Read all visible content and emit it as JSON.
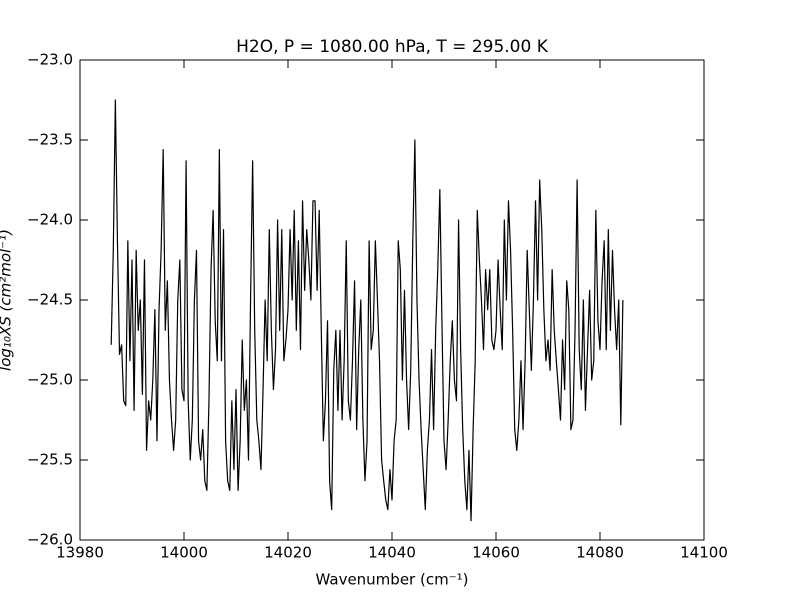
{
  "chart_data": {
    "type": "line",
    "title": "H2O, P = 1080.00 hPa, T = 295.00 K",
    "x_label": "Wavenumber (cm⁻¹)",
    "y_label": "log₁₀XS (cm²mol⁻¹)",
    "xlim": [
      13980,
      14100
    ],
    "xticks": [
      13980,
      14000,
      14020,
      14040,
      14060,
      14080,
      14100
    ],
    "ylim": [
      -26.0,
      -23.0
    ],
    "yticks": [
      {
        "value": -26,
        "label": "−26.0"
      },
      {
        "value": -25.5,
        "label": "−25.5"
      },
      {
        "value": -25,
        "label": "−25.0"
      },
      {
        "value": -24.5,
        "label": "−24.5"
      },
      {
        "value": -24,
        "label": "−24.0"
      },
      {
        "value": -23.5,
        "label": "−23.5"
      },
      {
        "value": -23,
        "label": "−23.0"
      }
    ],
    "grid": false,
    "series": [
      {
        "color": "#000000",
        "x": [
          13986.0,
          13986.4,
          13986.8,
          13987.2,
          13987.6,
          13988.0,
          13988.4,
          13988.8,
          13989.2,
          13989.6,
          13990.0,
          13990.4,
          13990.8,
          13991.2,
          13991.6,
          13992.0,
          13992.4,
          13992.8,
          13993.2,
          13993.6,
          13994.0,
          13994.4,
          13994.8,
          13995.2,
          13995.6,
          13996.0,
          13996.4,
          13996.8,
          13997.2,
          13997.6,
          13998.0,
          13998.4,
          13998.8,
          13999.2,
          13999.6,
          14000.0,
          14000.4,
          14000.8,
          14001.2,
          14001.6,
          14002.0,
          14002.4,
          14002.8,
          14003.2,
          14003.6,
          14004.0,
          14004.4,
          14004.8,
          14005.2,
          14005.6,
          14006.0,
          14006.4,
          14006.8,
          14007.2,
          14007.6,
          14008.0,
          14008.4,
          14008.8,
          14009.2,
          14009.6,
          14010.0,
          14010.4,
          14010.8,
          14011.2,
          14011.6,
          14012.0,
          14012.4,
          14012.8,
          14013.2,
          14013.6,
          14014.0,
          14014.4,
          14014.8,
          14015.2,
          14015.6,
          14016.0,
          14016.4,
          14016.8,
          14017.2,
          14017.6,
          14018.0,
          14018.4,
          14018.8,
          14019.2,
          14019.6,
          14020.0,
          14020.4,
          14020.8,
          14021.2,
          14021.6,
          14022.0,
          14022.4,
          14022.8,
          14023.2,
          14023.6,
          14024.0,
          14024.4,
          14024.8,
          14025.2,
          14025.6,
          14026.0,
          14026.4,
          14026.8,
          14027.2,
          14027.6,
          14028.0,
          14028.4,
          14028.8,
          14029.2,
          14029.6,
          14030.0,
          14030.4,
          14030.8,
          14031.2,
          14031.6,
          14032.0,
          14032.4,
          14032.8,
          14033.2,
          14033.6,
          14034.0,
          14034.4,
          14034.8,
          14035.2,
          14035.6,
          14036.0,
          14036.4,
          14036.8,
          14037.2,
          14037.6,
          14038.0,
          14038.4,
          14038.8,
          14039.2,
          14039.6,
          14040.0,
          14040.4,
          14040.8,
          14041.2,
          14041.6,
          14042.0,
          14042.4,
          14042.8,
          14043.2,
          14043.6,
          14044.0,
          14044.4,
          14044.8,
          14045.2,
          14045.6,
          14046.0,
          14046.4,
          14046.8,
          14047.2,
          14047.6,
          14048.0,
          14048.4,
          14048.8,
          14049.2,
          14049.6,
          14050.0,
          14050.4,
          14050.8,
          14051.2,
          14051.6,
          14052.0,
          14052.4,
          14052.8,
          14053.2,
          14053.6,
          14054.0,
          14054.4,
          14054.8,
          14055.2,
          14055.6,
          14056.0,
          14056.4,
          14056.8,
          14057.2,
          14057.6,
          14058.0,
          14058.4,
          14058.8,
          14059.2,
          14059.6,
          14060.0,
          14060.4,
          14060.8,
          14061.2,
          14061.6,
          14062.0,
          14062.4,
          14062.8,
          14063.2,
          14063.6,
          14064.0,
          14064.4,
          14064.8,
          14065.2,
          14065.6,
          14066.0,
          14066.4,
          14066.8,
          14067.2,
          14067.6,
          14068.0,
          14068.4,
          14068.8,
          14069.2,
          14069.6,
          14070.0,
          14070.4,
          14070.8,
          14071.2,
          14071.6,
          14072.0,
          14072.4,
          14072.8,
          14073.2,
          14073.6,
          14074.0,
          14074.4,
          14074.8,
          14075.2,
          14075.6,
          14076.0,
          14076.4,
          14076.8,
          14077.2,
          14077.6,
          14078.0,
          14078.4,
          14078.8,
          14079.2,
          14079.6,
          14080.0,
          14080.4,
          14080.8,
          14081.2,
          14081.6,
          14082.0,
          14082.4,
          14082.8,
          14083.2,
          14083.6,
          14084.0,
          14084.4
        ],
        "values": [
          -24.78,
          -24.19,
          -23.25,
          -24.13,
          -24.84,
          -24.78,
          -25.13,
          -25.16,
          -24.13,
          -24.88,
          -24.25,
          -25.19,
          -24.19,
          -24.69,
          -24.5,
          -25.09,
          -24.25,
          -25.44,
          -25.13,
          -25.25,
          -25.0,
          -24.56,
          -25.38,
          -24.56,
          -24.19,
          -23.56,
          -24.69,
          -24.38,
          -25.0,
          -25.25,
          -25.44,
          -25.25,
          -24.5,
          -24.25,
          -25.06,
          -25.13,
          -23.63,
          -25.13,
          -25.5,
          -25.25,
          -24.5,
          -24.19,
          -25.38,
          -25.5,
          -25.31,
          -25.63,
          -25.69,
          -25.13,
          -24.31,
          -23.94,
          -24.63,
          -24.88,
          -23.56,
          -24.88,
          -24.06,
          -25.38,
          -25.63,
          -25.69,
          -25.13,
          -25.56,
          -25.06,
          -25.69,
          -25.38,
          -24.75,
          -25.19,
          -25.0,
          -25.5,
          -24.5,
          -23.63,
          -24.69,
          -25.25,
          -25.38,
          -25.56,
          -25.06,
          -24.5,
          -24.88,
          -24.06,
          -24.69,
          -25.06,
          -24.81,
          -24.0,
          -24.69,
          -24.06,
          -24.88,
          -24.75,
          -24.56,
          -24.06,
          -24.5,
          -23.94,
          -24.69,
          -24.13,
          -24.81,
          -23.88,
          -24.44,
          -24.06,
          -24.25,
          -24.5,
          -23.88,
          -23.88,
          -24.44,
          -23.94,
          -24.69,
          -25.38,
          -25.13,
          -24.63,
          -25.63,
          -25.81,
          -24.94,
          -24.69,
          -25.19,
          -24.69,
          -25.25,
          -24.88,
          -24.13,
          -25.13,
          -25.25,
          -24.88,
          -24.38,
          -25.31,
          -24.81,
          -24.5,
          -25.25,
          -25.63,
          -25.38,
          -24.13,
          -24.81,
          -24.69,
          -24.13,
          -24.5,
          -24.88,
          -25.5,
          -25.63,
          -25.75,
          -25.81,
          -25.56,
          -25.75,
          -25.38,
          -25.25,
          -24.13,
          -24.31,
          -25.0,
          -24.44,
          -25.0,
          -25.31,
          -24.94,
          -24.13,
          -23.5,
          -24.5,
          -25.0,
          -25.31,
          -25.56,
          -25.81,
          -25.44,
          -25.25,
          -24.81,
          -25.31,
          -24.69,
          -24.31,
          -23.81,
          -24.63,
          -25.38,
          -25.56,
          -25.25,
          -24.88,
          -24.63,
          -25.0,
          -25.13,
          -24.0,
          -24.81,
          -25.31,
          -25.63,
          -25.81,
          -25.44,
          -25.88,
          -25.31,
          -24.88,
          -23.94,
          -24.25,
          -24.5,
          -24.81,
          -24.31,
          -24.56,
          -24.31,
          -24.75,
          -24.81,
          -24.69,
          -24.25,
          -24.56,
          -24.81,
          -24.0,
          -24.5,
          -23.88,
          -24.19,
          -24.69,
          -25.31,
          -25.44,
          -25.25,
          -24.88,
          -25.31,
          -24.88,
          -24.19,
          -24.56,
          -24.94,
          -24.5,
          -23.88,
          -24.5,
          -23.75,
          -24.06,
          -24.56,
          -24.88,
          -24.75,
          -24.94,
          -24.31,
          -24.69,
          -24.88,
          -25.06,
          -25.25,
          -24.75,
          -25.06,
          -24.38,
          -24.56,
          -25.31,
          -25.25,
          -24.69,
          -23.75,
          -24.81,
          -25.06,
          -24.5,
          -25.19,
          -24.81,
          -24.44,
          -25.0,
          -24.88,
          -23.94,
          -24.63,
          -24.81,
          -24.38,
          -24.13,
          -24.81,
          -24.06,
          -24.69,
          -24.19,
          -24.56,
          -24.81,
          -24.5,
          -25.28,
          -24.5
        ]
      }
    ]
  }
}
